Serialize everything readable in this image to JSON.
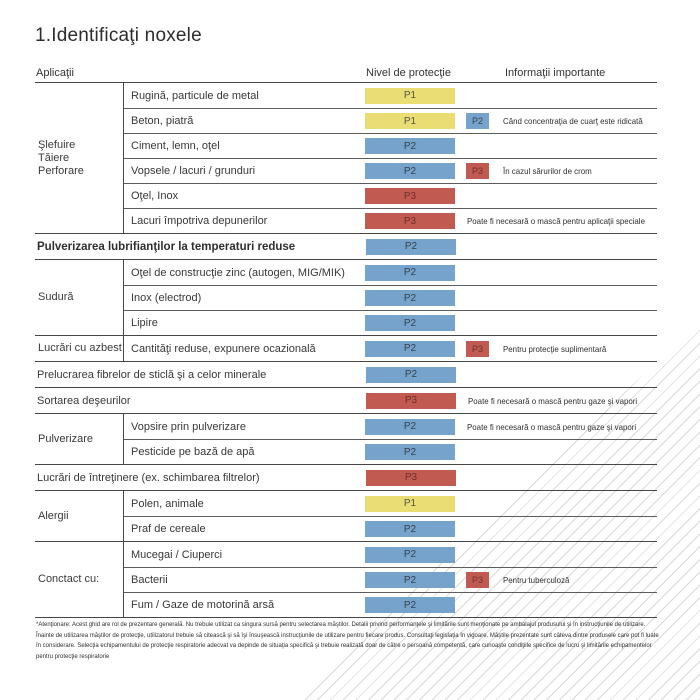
{
  "page": {
    "title": "1.Identificaţi noxele"
  },
  "columns": {
    "applications": "Aplicaţii",
    "protection": "Nivel de protecţie",
    "info": "Informaţii importante"
  },
  "levels": {
    "P1": {
      "label": "P1",
      "bg": "#E9DD74",
      "fg": "#55564A"
    },
    "P2": {
      "label": "P2",
      "bg": "#76A3CB",
      "fg": "#33424F"
    },
    "P3": {
      "label": "P3",
      "bg": "#C15B51",
      "fg": "#6E2F2A"
    }
  },
  "colors": {
    "rule_dark": "#464646",
    "rule_light": "#5C5C5C",
    "hatch": "#DADADA",
    "text": "#383838"
  },
  "table": {
    "groups": [
      {
        "category": "Şlefuire\nTăiere\nPerforare",
        "items": [
          {
            "label": "Rugină, particule de metal",
            "level": "P1"
          },
          {
            "label": "Beton, piatră",
            "level": "P1",
            "extra": "P2",
            "note": "Când concentraţia de cuarţ este ridicată"
          },
          {
            "label": "Ciment, lemn, oţel",
            "level": "P2"
          },
          {
            "label": "Vopsele / lacuri / grunduri",
            "level": "P2",
            "extra": "P3",
            "note": "În cazul sărurilor de crom"
          },
          {
            "label": "Oţel, Inox",
            "level": "P3"
          },
          {
            "label": "Lacuri împotriva depunerilor",
            "level": "P3",
            "note": "Poate fi necesară o mască pentru aplicaţii speciale"
          }
        ]
      },
      {
        "category": null,
        "bold": true,
        "items": [
          {
            "label": "Pulverizarea lubrifianţilor la temperaturi reduse",
            "level": "P2"
          }
        ]
      },
      {
        "category": "Sudură",
        "items": [
          {
            "label": "Oţel de construcţie zinc (autogen, MIG/MIK)",
            "level": "P2"
          },
          {
            "label": "Inox (electrod)",
            "level": "P2"
          },
          {
            "label": "Lipire",
            "level": "P2"
          }
        ]
      },
      {
        "category": "Lucrări cu azbest",
        "items": [
          {
            "label": "Cantităţi reduse, expunere ocazională",
            "level": "P2",
            "extra": "P3",
            "note": "Pentru protecţie suplimentară"
          }
        ]
      },
      {
        "category": null,
        "items": [
          {
            "label": "Prelucrarea fibrelor de sticlă şi a celor minerale",
            "level": "P2"
          }
        ]
      },
      {
        "category": null,
        "items": [
          {
            "label": "Sortarea deşeurilor",
            "level": "P3",
            "note": "Poate fi necesară o mască pentru gaze şi vapori"
          }
        ]
      },
      {
        "category": "Pulverizare",
        "items": [
          {
            "label": "Vopsire prin pulverizare",
            "level": "P2",
            "note": "Poate fi necesară o mască pentru gaze şi vapori"
          },
          {
            "label": "Pesticide pe bază de apă",
            "level": "P2"
          }
        ]
      },
      {
        "category": null,
        "items": [
          {
            "label": "Lucrări de întreţinere (ex. schimbarea filtrelor)",
            "level": "P3"
          }
        ]
      },
      {
        "category": "Alergii",
        "items": [
          {
            "label": "Polen, animale",
            "level": "P1"
          },
          {
            "label": "Praf de cereale",
            "level": "P2"
          }
        ]
      },
      {
        "category": "Conctact cu:",
        "items": [
          {
            "label": "Mucegai / Ciuperci",
            "level": "P2"
          },
          {
            "label": "Bacterii",
            "level": "P2",
            "extra": "P3",
            "note": "Pentru tuberculoză"
          },
          {
            "label": "Fum / Gaze de motorină arsă",
            "level": "P2"
          }
        ]
      }
    ]
  },
  "footnote": "*Atenţionare: Acest ghid are rol de prezentare generală. Nu trebuie utilizat ca singura sursă pentru selectarea măştilor. Detalii privind performanţele şi limitările sunt menţionate pe ambalajul produsului şi în instrucţiunile de utilizare. Înainte de utilizarea măştilor de protecţie, utilizatorul trebuie să citească şi să îşi însuşească instrucţiunile de utilizare pentru fiecare produs. Consultaţi legislaţia în vigoare. Măştile prezentate sunt câteva dintre produsele care pot fi luate în considerare. Selecţia echipamentului de protecţie respiratorie adecvat va depinde de situaţia specifică şi trebuie realizată doar de către o persoană competentă, care cunoaşte condiţiile specifice de lucru şi limitările echipamentelor pentru protecţie respiratorie"
}
